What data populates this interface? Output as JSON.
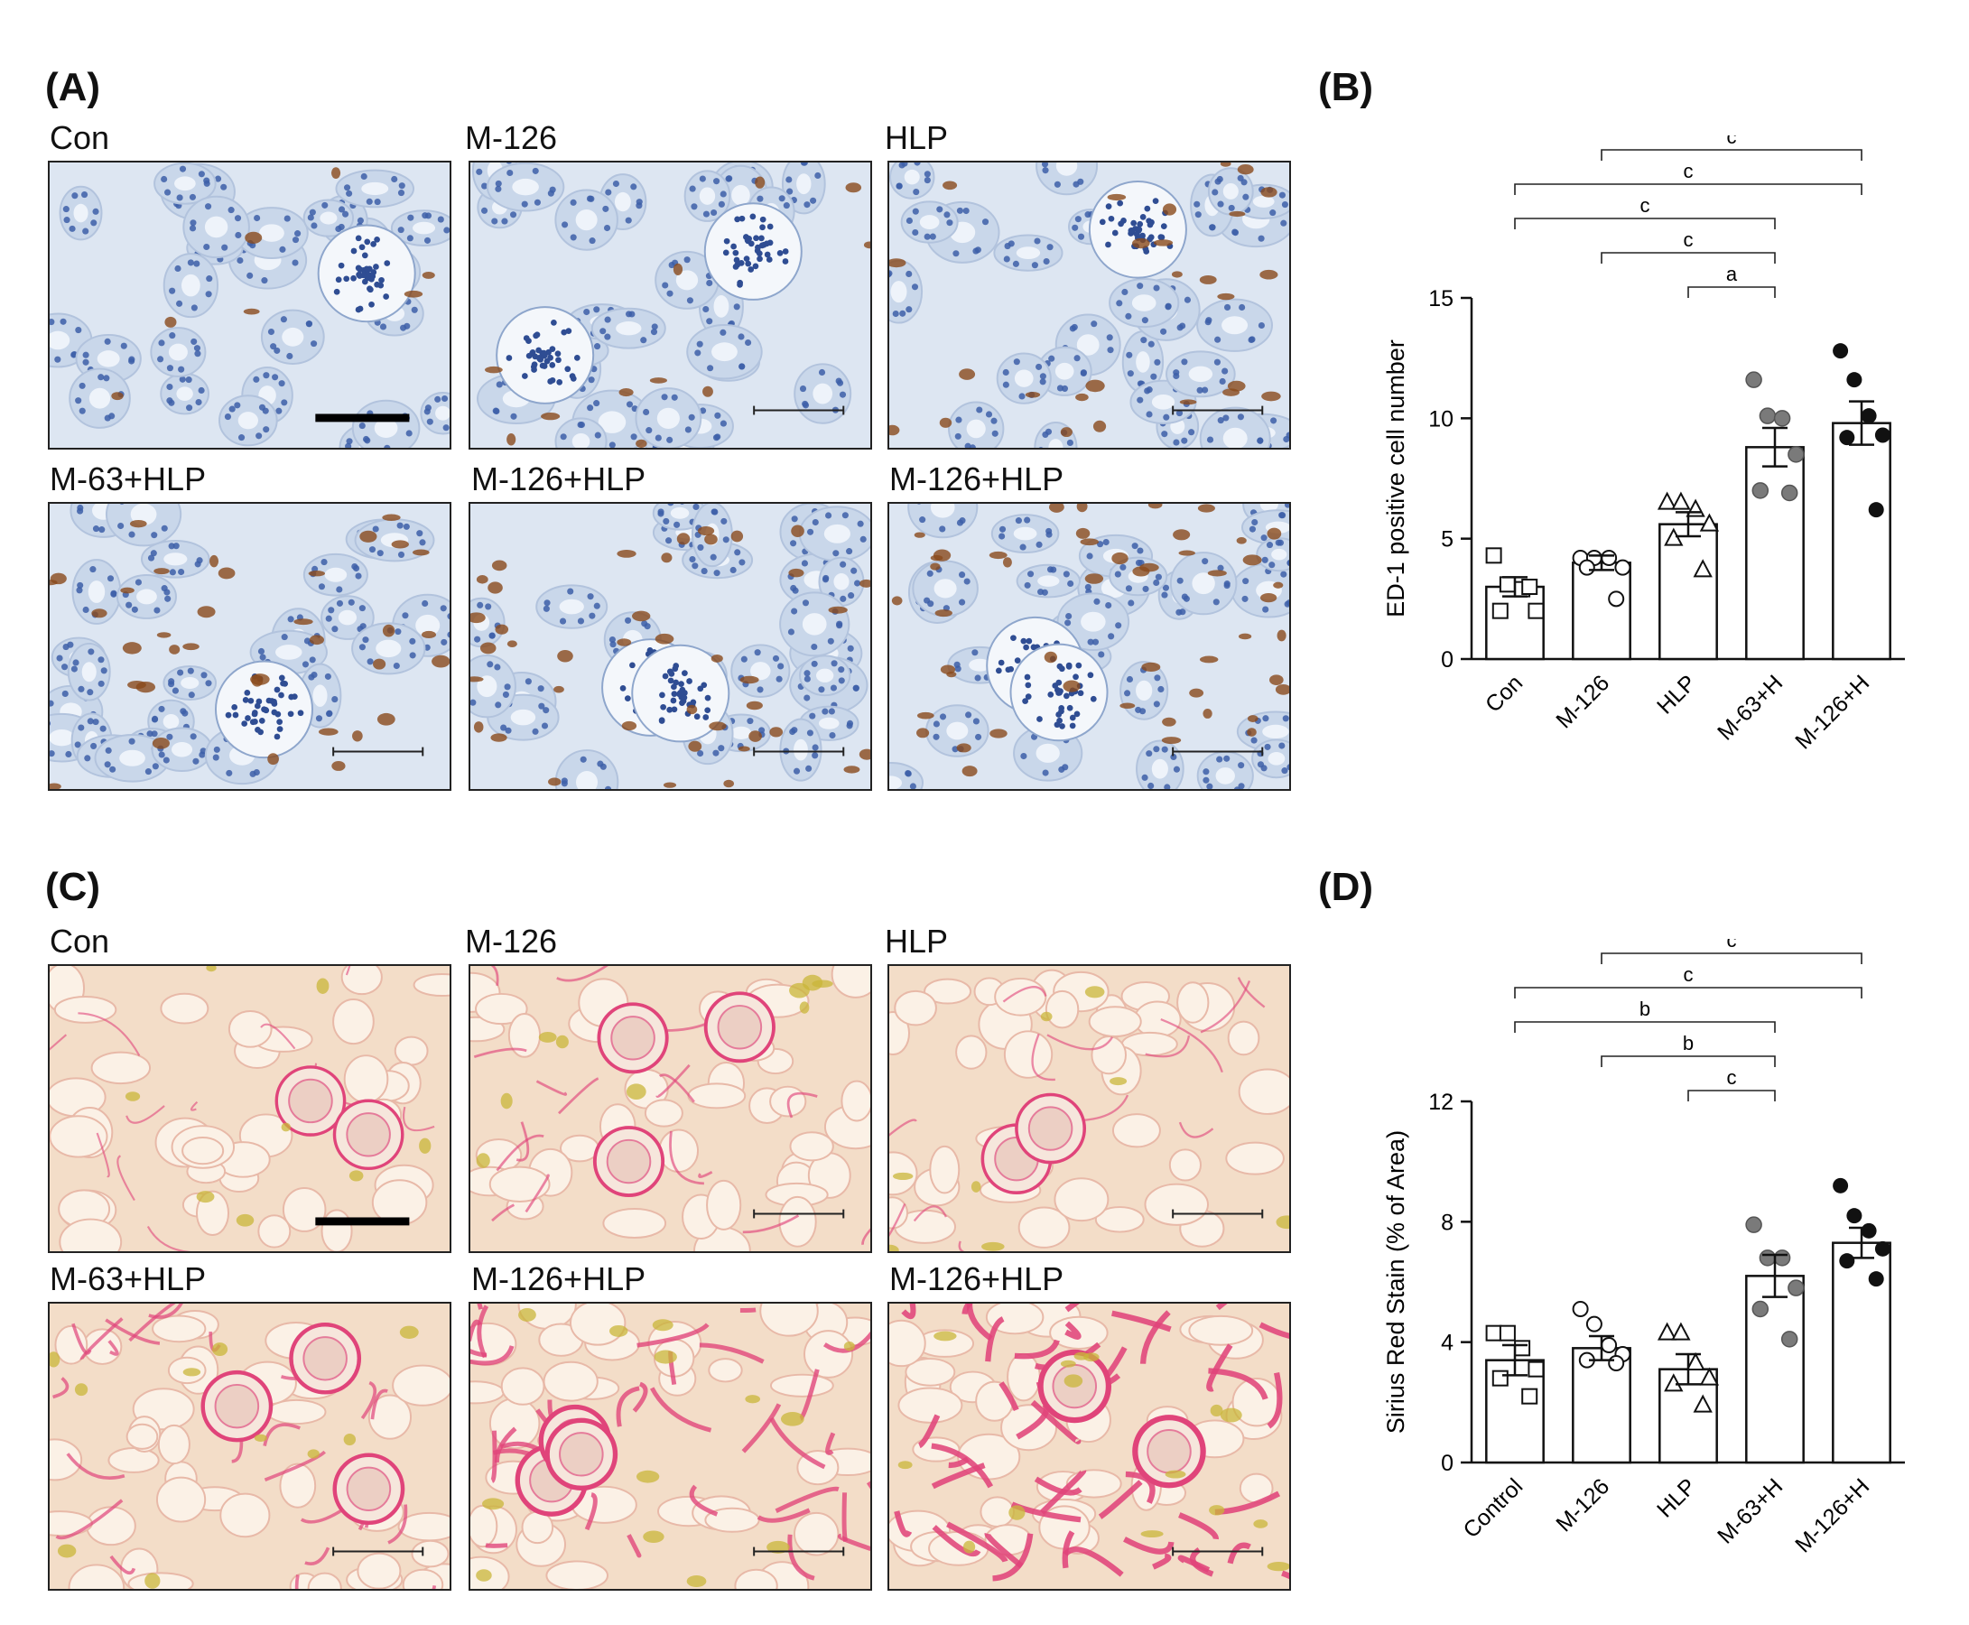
{
  "panel_labels": {
    "a": "(A)",
    "b": "(B)",
    "c": "(C)",
    "d": "(D)"
  },
  "micrographs_a": [
    {
      "label": "Con"
    },
    {
      "label": "M-126"
    },
    {
      "label": "HLP"
    },
    {
      "label": "M-63+HLP"
    },
    {
      "label": "M-126+HLP"
    },
    {
      "label": "M-126+HLP"
    }
  ],
  "micrographs_c": [
    {
      "label": "Con"
    },
    {
      "label": "M-126"
    },
    {
      "label": "HLP"
    },
    {
      "label": "M-63+HLP"
    },
    {
      "label": "M-126+HLP"
    },
    {
      "label": "M-126+HLP"
    }
  ],
  "stain_colors": {
    "ihc_background": "#dde6f2",
    "ihc_nuclei": "#3d5fa8",
    "ihc_positive": "#8a4a1c",
    "sirius_background": "#f3ddc8",
    "sirius_fiber": "#e0447a",
    "sirius_deposit": "#c9b53a"
  },
  "chart_data": [
    {
      "type": "bar",
      "panel": "B",
      "categories": [
        "Con",
        "M-126",
        "HLP",
        "M-63+H",
        "M-126+H"
      ],
      "values": [
        3.0,
        4.0,
        5.6,
        8.8,
        9.8
      ],
      "errors": [
        0.4,
        0.3,
        0.5,
        0.8,
        0.9
      ],
      "points": [
        [
          4.3,
          3.1,
          2.9,
          2.0,
          2.0,
          3.0
        ],
        [
          4.2,
          4.2,
          4.2,
          3.8,
          3.8,
          2.5
        ],
        [
          6.5,
          6.5,
          6.2,
          5.6,
          5.0,
          3.7
        ],
        [
          11.6,
          10.1,
          10.0,
          8.5,
          7.0,
          6.9
        ],
        [
          12.8,
          11.6,
          10.1,
          9.3,
          9.2,
          6.2
        ]
      ],
      "markers": [
        "square-open",
        "circle-open",
        "triangle-open",
        "circle-gray",
        "circle-black"
      ],
      "ylabel": "ED-1 positive cell number",
      "ylim": [
        0,
        15
      ],
      "yticks": [
        0,
        5,
        10,
        15
      ],
      "significance": [
        {
          "from": 2,
          "to": 4,
          "label": "c"
        },
        {
          "from": 1,
          "to": 4,
          "label": "c"
        },
        {
          "from": 0,
          "to": 4,
          "label": "c"
        },
        {
          "from": 0,
          "to": 3,
          "label": "c"
        },
        {
          "from": 1,
          "to": 3,
          "label": "c"
        },
        {
          "from": 2,
          "to": 3,
          "label": "a"
        }
      ]
    },
    {
      "type": "bar",
      "panel": "D",
      "categories": [
        "Control",
        "M-126",
        "HLP",
        "M-63+H",
        "M-126+H"
      ],
      "values": [
        3.4,
        3.8,
        3.1,
        6.2,
        7.3
      ],
      "errors": [
        0.5,
        0.4,
        0.5,
        0.7,
        0.5
      ],
      "points": [
        [
          4.3,
          4.3,
          3.8,
          3.1,
          2.8,
          2.2
        ],
        [
          5.1,
          4.6,
          3.9,
          3.6,
          3.4,
          3.3
        ],
        [
          4.3,
          4.3,
          3.3,
          2.8,
          2.6,
          1.9
        ],
        [
          7.9,
          6.8,
          6.8,
          5.8,
          5.1,
          4.1
        ],
        [
          9.2,
          8.2,
          7.7,
          7.1,
          6.7,
          6.1
        ]
      ],
      "markers": [
        "square-open",
        "circle-open",
        "triangle-open",
        "circle-gray",
        "circle-black"
      ],
      "ylabel": "Sirius Red Stain (% of Area)",
      "ylim": [
        0,
        12
      ],
      "yticks": [
        0,
        4,
        8,
        12
      ],
      "significance": [
        {
          "from": 2,
          "to": 4,
          "label": "c"
        },
        {
          "from": 1,
          "to": 4,
          "label": "c"
        },
        {
          "from": 0,
          "to": 4,
          "label": "c"
        },
        {
          "from": 0,
          "to": 3,
          "label": "b"
        },
        {
          "from": 1,
          "to": 3,
          "label": "b"
        },
        {
          "from": 2,
          "to": 3,
          "label": "c"
        }
      ]
    }
  ]
}
